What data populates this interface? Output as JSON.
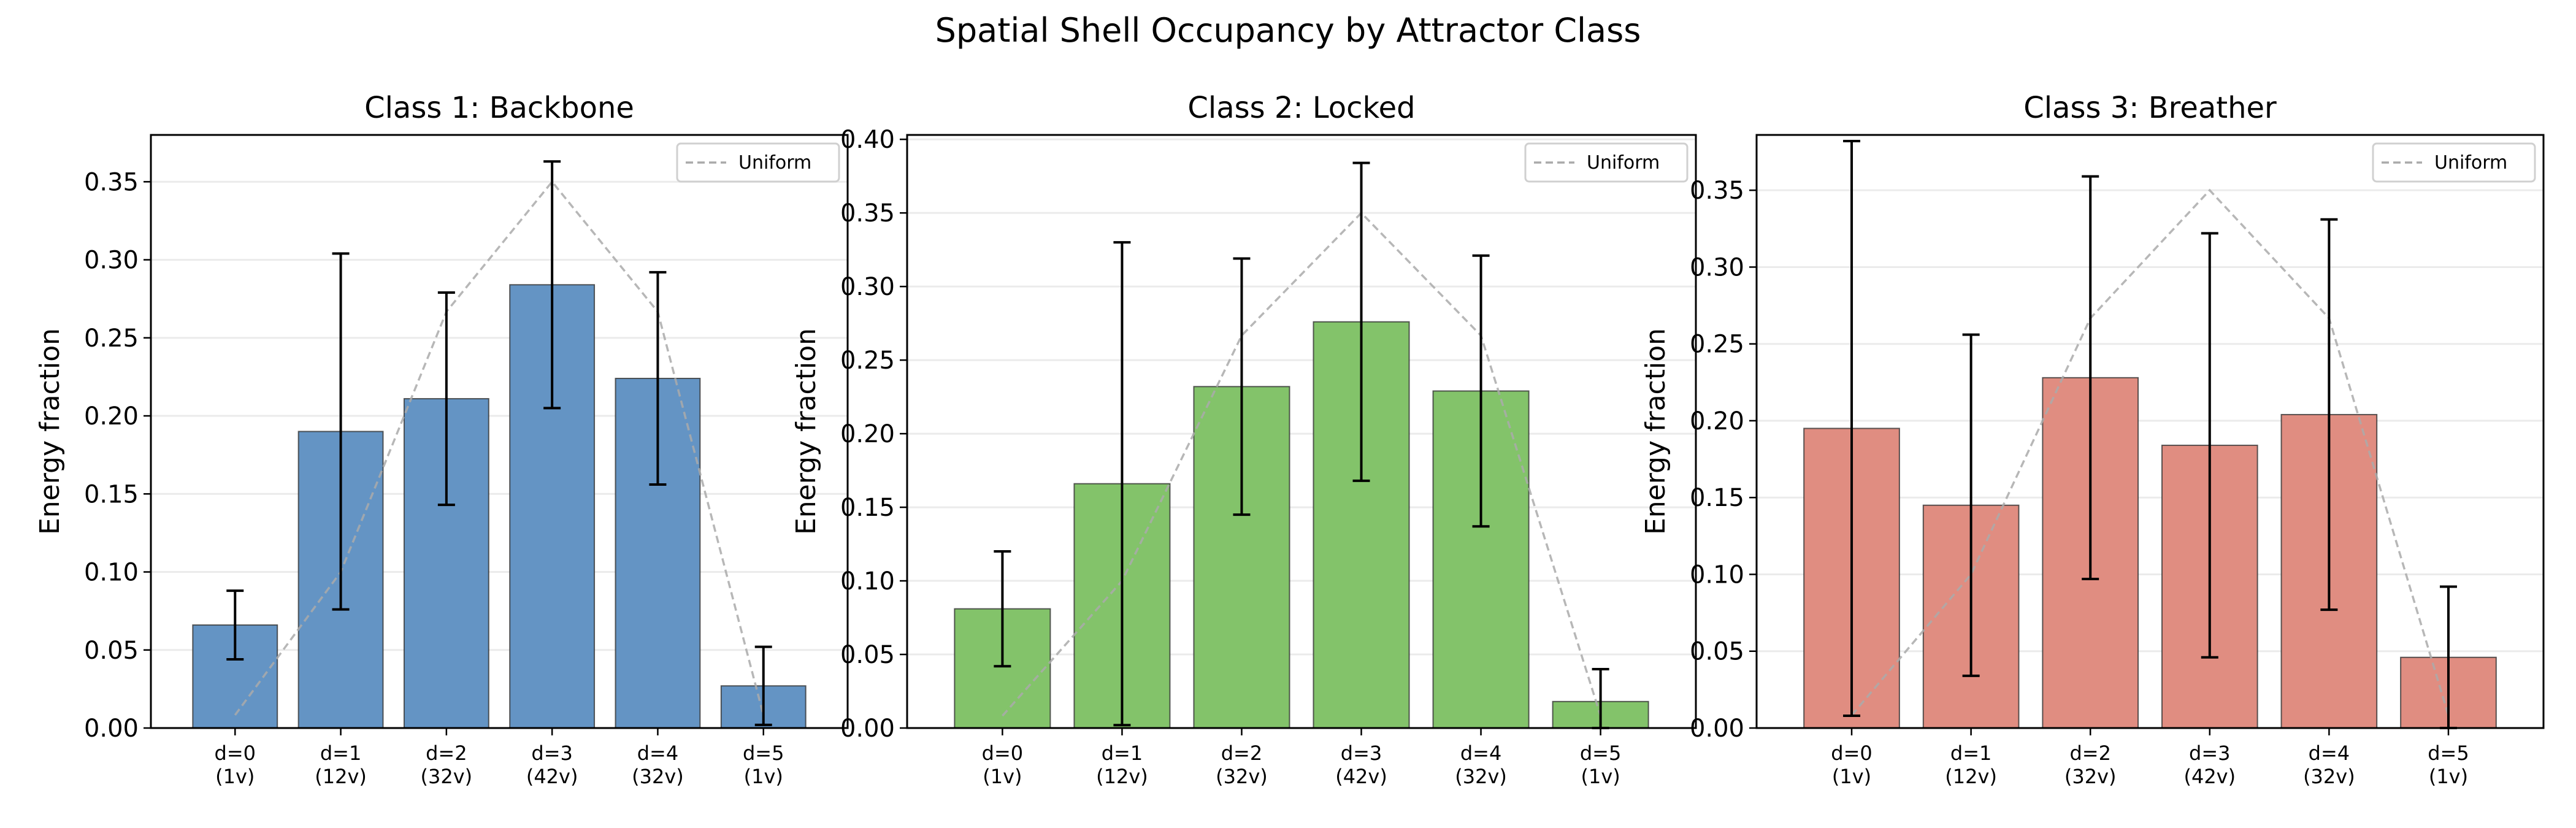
{
  "suptitle": "Spatial Shell Occupancy by Attractor Class",
  "chart_data": [
    {
      "type": "bar",
      "title": "Class 1: Backbone",
      "ylabel": "Energy fraction",
      "xlabel": "",
      "categories": [
        "d=0\n(1v)",
        "d=1\n(12v)",
        "d=2\n(32v)",
        "d=3\n(42v)",
        "d=4\n(32v)",
        "d=5\n(1v)"
      ],
      "values": [
        0.066,
        0.19,
        0.211,
        0.284,
        0.224,
        0.027
      ],
      "errors": [
        0.022,
        0.114,
        0.068,
        0.079,
        0.068,
        0.025
      ],
      "color": "#6494c4",
      "ylim": [
        0,
        0.38
      ],
      "yticks": [
        0.0,
        0.05,
        0.1,
        0.15,
        0.2,
        0.25,
        0.3,
        0.35
      ],
      "reference": {
        "name": "Uniform",
        "values": [
          0.0083,
          0.1,
          0.2667,
          0.35,
          0.2667,
          0.0083
        ],
        "color": "#aaaaaa"
      },
      "legend": "top-right",
      "grid": "y"
    },
    {
      "type": "bar",
      "title": "Class 2: Locked",
      "ylabel": "Energy fraction",
      "xlabel": "",
      "categories": [
        "d=0\n(1v)",
        "d=1\n(12v)",
        "d=2\n(32v)",
        "d=3\n(42v)",
        "d=4\n(32v)",
        "d=5\n(1v)"
      ],
      "values": [
        0.081,
        0.166,
        0.232,
        0.276,
        0.229,
        0.018
      ],
      "errors": [
        0.039,
        0.164,
        0.087,
        0.108,
        0.092,
        0.022
      ],
      "color": "#83c36a",
      "ylim": [
        0,
        0.403
      ],
      "yticks": [
        0.0,
        0.05,
        0.1,
        0.15,
        0.2,
        0.25,
        0.3,
        0.35,
        0.4
      ],
      "reference": {
        "name": "Uniform",
        "values": [
          0.0083,
          0.1,
          0.2667,
          0.35,
          0.2667,
          0.0083
        ],
        "color": "#aaaaaa"
      },
      "legend": "top-right",
      "grid": "y"
    },
    {
      "type": "bar",
      "title": "Class 3: Breather",
      "ylabel": "Energy fraction",
      "xlabel": "",
      "categories": [
        "d=0\n(1v)",
        "d=1\n(12v)",
        "d=2\n(32v)",
        "d=3\n(42v)",
        "d=4\n(32v)",
        "d=5\n(1v)"
      ],
      "values": [
        0.195,
        0.145,
        0.228,
        0.184,
        0.204,
        0.046
      ],
      "errors": [
        0.187,
        0.111,
        0.131,
        0.138,
        0.127,
        0.046
      ],
      "color": "#e08d81",
      "ylim": [
        0,
        0.386
      ],
      "yticks": [
        0.0,
        0.05,
        0.1,
        0.15,
        0.2,
        0.25,
        0.3,
        0.35
      ],
      "reference": {
        "name": "Uniform",
        "values": [
          0.0083,
          0.1,
          0.2667,
          0.35,
          0.2667,
          0.0083
        ],
        "color": "#aaaaaa"
      },
      "legend": "top-right",
      "grid": "y"
    }
  ]
}
